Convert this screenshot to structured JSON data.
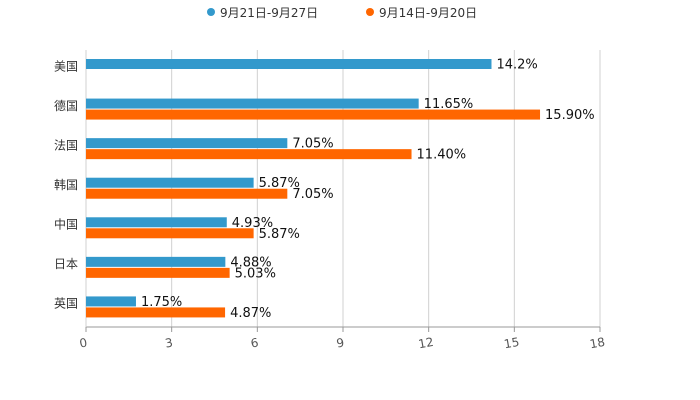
{
  "chart_data": {
    "type": "bar",
    "orientation": "horizontal",
    "title": "",
    "xlabel": "",
    "ylabel": "",
    "xlim": [
      0,
      18
    ],
    "ticks": [
      "0",
      "3",
      "6",
      "9",
      "12",
      "15",
      "18"
    ],
    "tick_values": [
      0,
      3,
      6,
      9,
      12,
      15,
      18
    ],
    "grid": true,
    "legend_position": "top-center",
    "categories": [
      "美国",
      "德国",
      "法国",
      "韩国",
      "中国",
      "日本",
      "英国"
    ],
    "series": [
      {
        "name": "9月21日-9月27日",
        "color": "#3399cc",
        "values": [
          14.2,
          11.65,
          7.05,
          5.87,
          4.93,
          4.88,
          1.75
        ],
        "labels": [
          "14.2%",
          "11.65%",
          "7.05%",
          "5.87%",
          "4.93%",
          "4.88%",
          "1.75%"
        ]
      },
      {
        "name": "9月14日-9月20日",
        "color": "#ff6600",
        "values": [
          null,
          15.9,
          11.4,
          7.05,
          5.87,
          5.03,
          4.87
        ],
        "labels": [
          "",
          "15.90%",
          "11.40%",
          "7.05%",
          "5.87%",
          "5.03%",
          "4.87%"
        ]
      }
    ]
  }
}
